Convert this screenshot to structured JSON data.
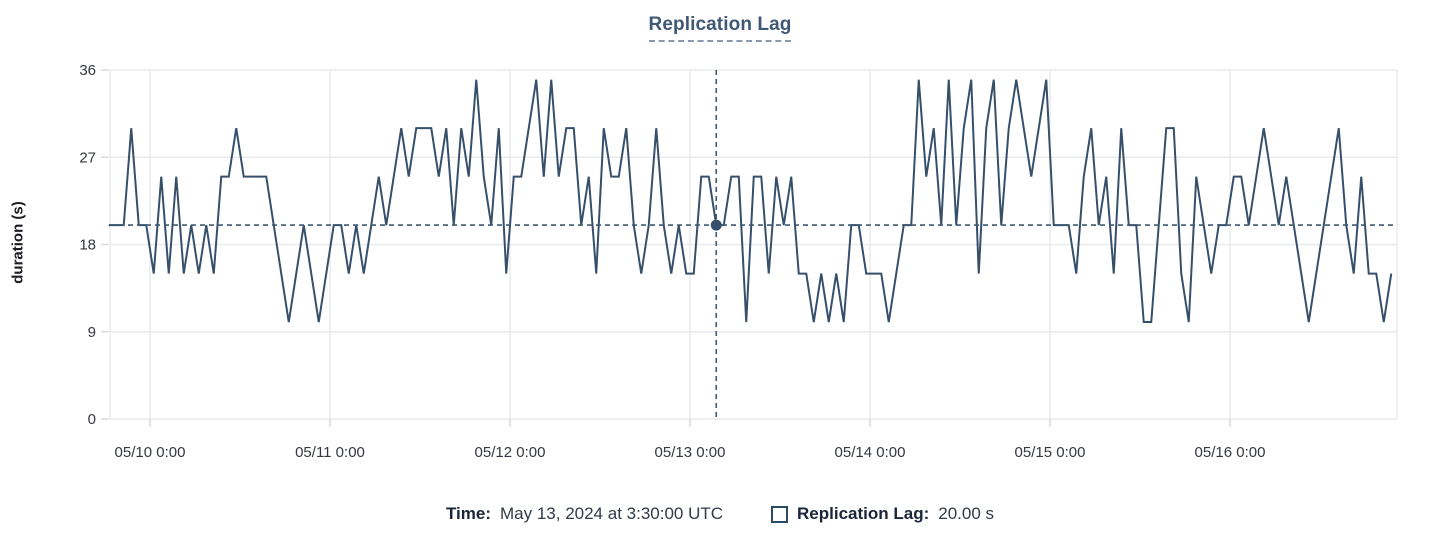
{
  "chart": {
    "title": "Replication Lag",
    "ylabel": "duration (s)"
  },
  "legend": {
    "time_label": "Time:",
    "time_value": "May 13, 2024 at 3:30:00 UTC",
    "series_label": "Replication Lag:",
    "series_value": "20.00 s"
  },
  "colors": {
    "line": "#36506b",
    "crosshair": "#3f5a73",
    "grid": "#e8eaed",
    "tick": "#d6d9de",
    "axis_text": "#343741",
    "title": "#3f5876"
  },
  "chart_data": {
    "type": "line",
    "title": "Replication Lag",
    "xlabel": "",
    "ylabel": "duration (s)",
    "ylim": [
      0,
      36
    ],
    "yticks": [
      0,
      9,
      18,
      27,
      36
    ],
    "xtick_labels": [
      "05/10 0:00",
      "05/11 0:00",
      "05/12 0:00",
      "05/13 0:00",
      "05/14 0:00",
      "05/15 0:00",
      "05/16 0:00"
    ],
    "grid": true,
    "legend_position": "bottom",
    "x_start": "2024-05-09 18:30 UTC",
    "x_step_minutes": 60,
    "series": [
      {
        "name": "Replication Lag",
        "unit": "s",
        "color": "#36506b",
        "values": [
          20,
          20,
          20,
          30,
          20,
          20,
          15,
          25,
          15,
          25,
          15,
          20,
          15,
          20,
          15,
          25,
          25,
          30,
          25,
          25,
          25,
          25,
          20,
          15,
          10,
          15,
          20,
          15,
          10,
          15,
          20,
          20,
          15,
          20,
          15,
          20,
          25,
          20,
          25,
          30,
          25,
          30,
          30,
          30,
          25,
          30,
          20,
          30,
          25,
          35,
          25,
          20,
          30,
          15,
          25,
          25,
          30,
          35,
          25,
          35,
          25,
          30,
          30,
          20,
          25,
          15,
          30,
          25,
          25,
          30,
          20,
          15,
          20,
          30,
          20,
          15,
          20,
          15,
          15,
          25,
          25,
          20,
          20,
          25,
          25,
          10,
          25,
          25,
          15,
          25,
          20,
          25,
          15,
          15,
          10,
          15,
          10,
          15,
          10,
          20,
          20,
          15,
          15,
          15,
          10,
          15,
          20,
          20,
          35,
          25,
          30,
          20,
          35,
          20,
          30,
          35,
          15,
          30,
          35,
          20,
          30,
          35,
          30,
          25,
          30,
          35,
          20,
          20,
          20,
          15,
          25,
          30,
          20,
          25,
          15,
          30,
          20,
          20,
          10,
          10,
          20,
          30,
          30,
          15,
          10,
          25,
          20,
          15,
          20,
          20,
          25,
          25,
          20,
          25,
          30,
          25,
          20,
          25,
          20,
          15,
          10,
          15,
          20,
          25,
          30,
          20,
          15,
          25,
          15,
          15,
          10,
          15
        ]
      }
    ],
    "crosshair": {
      "index": 81,
      "time_label": "May 13, 2024 at 3:30:00 UTC",
      "value": 20,
      "value_label": "20.00 s"
    }
  }
}
